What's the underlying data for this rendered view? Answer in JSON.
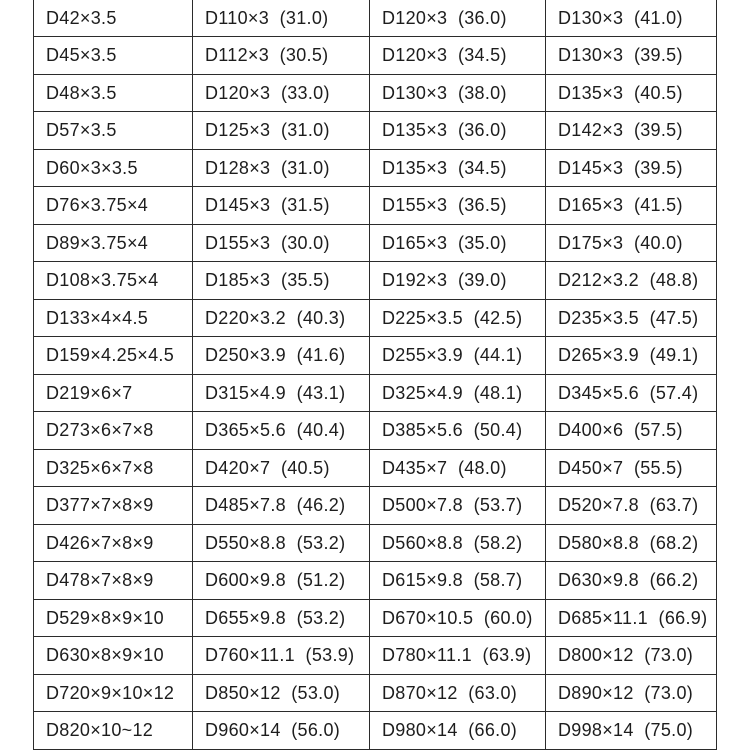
{
  "colors": {
    "background": "#ffffff",
    "border": "#2b2b2b",
    "text": "#1d1d1d"
  },
  "table": {
    "column_count": 4,
    "rows": [
      [
        "D42×3.5",
        "D110×3  (31.0)",
        "D120×3  (36.0)",
        "D130×3  (41.0)"
      ],
      [
        "D45×3.5",
        "D112×3  (30.5)",
        "D120×3  (34.5)",
        "D130×3  (39.5)"
      ],
      [
        "D48×3.5",
        "D120×3  (33.0)",
        "D130×3  (38.0)",
        "D135×3  (40.5)"
      ],
      [
        "D57×3.5",
        "D125×3  (31.0)",
        "D135×3  (36.0)",
        "D142×3  (39.5)"
      ],
      [
        "D60×3×3.5",
        "D128×3  (31.0)",
        "D135×3  (34.5)",
        "D145×3  (39.5)"
      ],
      [
        "D76×3.75×4",
        "D145×3  (31.5)",
        "D155×3  (36.5)",
        "D165×3  (41.5)"
      ],
      [
        "D89×3.75×4",
        "D155×3  (30.0)",
        "D165×3  (35.0)",
        "D175×3  (40.0)"
      ],
      [
        "D108×3.75×4",
        "D185×3  (35.5)",
        "D192×3  (39.0)",
        "D212×3.2  (48.8)"
      ],
      [
        "D133×4×4.5",
        "D220×3.2  (40.3)",
        "D225×3.5  (42.5)",
        "D235×3.5  (47.5)"
      ],
      [
        "D159×4.25×4.5",
        "D250×3.9  (41.6)",
        "D255×3.9  (44.1)",
        "D265×3.9  (49.1)"
      ],
      [
        "D219×6×7",
        "D315×4.9  (43.1)",
        "D325×4.9  (48.1)",
        "D345×5.6  (57.4)"
      ],
      [
        "D273×6×7×8",
        "D365×5.6  (40.4)",
        "D385×5.6  (50.4)",
        "D400×6  (57.5)"
      ],
      [
        "D325×6×7×8",
        "D420×7  (40.5)",
        "D435×7  (48.0)",
        "D450×7  (55.5)"
      ],
      [
        "D377×7×8×9",
        "D485×7.8  (46.2)",
        "D500×7.8  (53.7)",
        "D520×7.8  (63.7)"
      ],
      [
        "D426×7×8×9",
        "D550×8.8  (53.2)",
        "D560×8.8  (58.2)",
        "D580×8.8  (68.2)"
      ],
      [
        "D478×7×8×9",
        "D600×9.8  (51.2)",
        "D615×9.8  (58.7)",
        "D630×9.8  (66.2)"
      ],
      [
        "D529×8×9×10",
        "D655×9.8  (53.2)",
        "D670×10.5  (60.0)",
        "D685×11.1  (66.9)"
      ],
      [
        "D630×8×9×10",
        "D760×11.1  (53.9)",
        "D780×11.1  (63.9)",
        "D800×12  (73.0)"
      ],
      [
        "D720×9×10×12",
        "D850×12  (53.0)",
        "D870×12  (63.0)",
        "D890×12  (73.0)"
      ],
      [
        "D820×10~12",
        "D960×14  (56.0)",
        "D980×14  (66.0)",
        "D998×14  (75.0)"
      ]
    ]
  }
}
